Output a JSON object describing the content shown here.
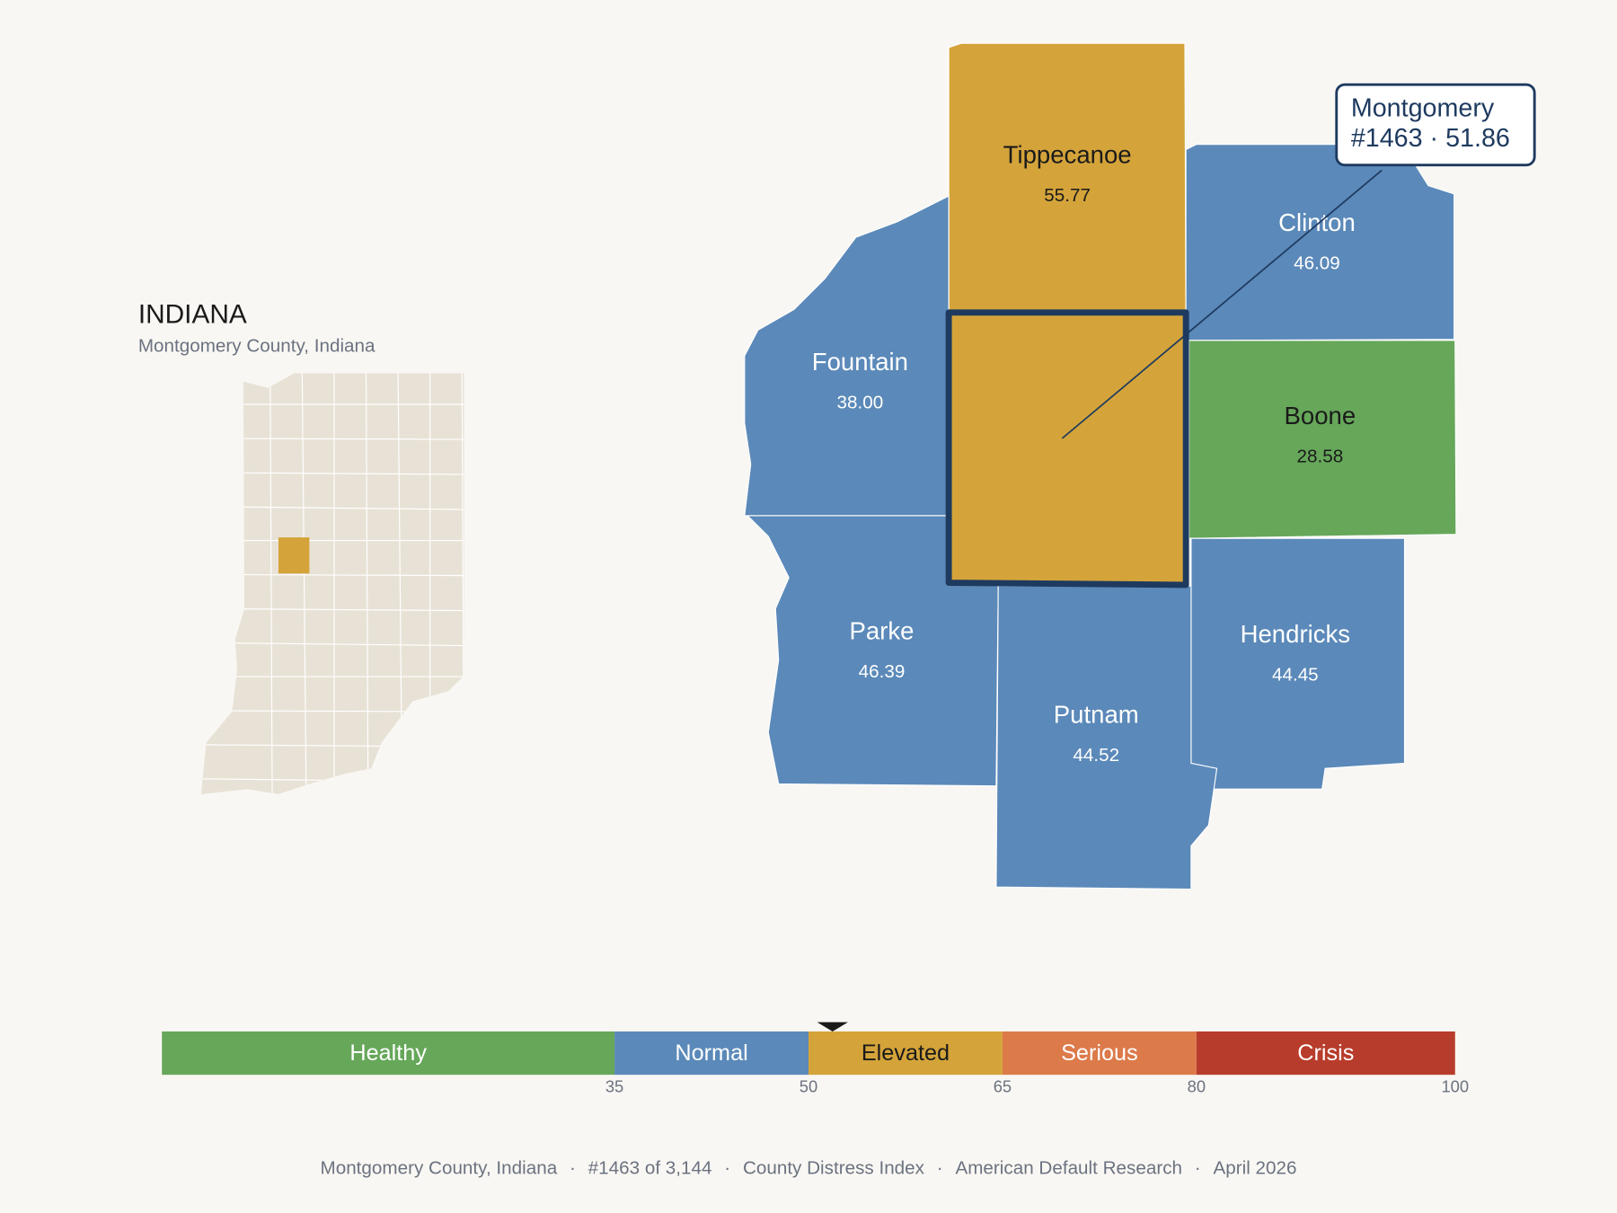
{
  "header": {
    "title": "INDIANA",
    "subtitle": "Montgomery County, Indiana"
  },
  "locator": {
    "state_color": "#e8e2d6",
    "highlight_color": "#d4a43a"
  },
  "map": {
    "counties": [
      {
        "name": "Tippecanoe",
        "value": "55.77",
        "color": "#d4a43a",
        "text_color": "#1a1a1a"
      },
      {
        "name": "Clinton",
        "value": "46.09",
        "color": "#5b89b9",
        "text_color": "#ffffff"
      },
      {
        "name": "Fountain",
        "value": "38.00",
        "color": "#5b89b9",
        "text_color": "#ffffff"
      },
      {
        "name": "Boone",
        "value": "28.58",
        "color": "#66a75a",
        "text_color": "#1a1a1a"
      },
      {
        "name": "Parke",
        "value": "46.39",
        "color": "#5b89b9",
        "text_color": "#ffffff"
      },
      {
        "name": "Hendricks",
        "value": "44.45",
        "color": "#5b89b9",
        "text_color": "#ffffff"
      },
      {
        "name": "Putnam",
        "value": "44.52",
        "color": "#5b89b9",
        "text_color": "#ffffff"
      },
      {
        "name": "Montgomery",
        "value": "51.86",
        "color": "#d4a43a",
        "text_color": "#1a1a1a"
      }
    ],
    "callout": {
      "line1": "Montgomery",
      "line2": "#1463 · 51.86"
    }
  },
  "scale": {
    "range": [
      0,
      100
    ],
    "ticks": [
      35,
      50,
      65,
      80,
      100
    ],
    "marker": 51.86,
    "bands": [
      {
        "name": "Healthy",
        "color": "#66a75a"
      },
      {
        "name": "Normal",
        "color": "#5b89b9"
      },
      {
        "name": "Elevated",
        "color": "#d4a43a"
      },
      {
        "name": "Serious",
        "color": "#dc7a4a"
      },
      {
        "name": "Crisis",
        "color": "#b83c2b"
      }
    ]
  },
  "footer": {
    "separator": "·",
    "parts": [
      "Montgomery County, Indiana",
      "#1463 of 3,144",
      "County Distress Index",
      "American Default Research",
      "April 2026"
    ]
  }
}
